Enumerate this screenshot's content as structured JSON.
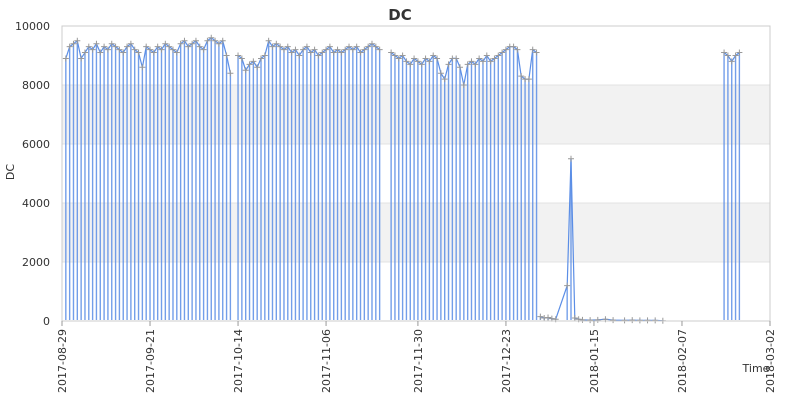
{
  "chart_data": {
    "type": "line",
    "title": "DC",
    "xlabel": "Time",
    "ylabel": "DC",
    "ylim": [
      0,
      10000
    ],
    "xlim": [
      "2017-08-29",
      "2018-03-02"
    ],
    "y_ticks": [
      0,
      2000,
      4000,
      6000,
      8000,
      10000
    ],
    "x_ticks": [
      "2017-08-29",
      "2017-09-21",
      "2017-10-14",
      "2017-11-06",
      "2017-11-30",
      "2017-12-23",
      "2018-01-15",
      "2018-02-07",
      "2018-03-02"
    ],
    "grid": true,
    "alternating_bands": true,
    "legend": "none",
    "series": [
      {
        "color": "#5b8ee6",
        "error_bar_color": "#999999",
        "marker": "plus",
        "segments": [
          {
            "x": [
              "2017-08-30",
              "2017-08-31",
              "2017-09-01",
              "2017-09-02",
              "2017-09-03",
              "2017-09-04",
              "2017-09-05",
              "2017-09-06",
              "2017-09-07",
              "2017-09-08",
              "2017-09-09",
              "2017-09-10",
              "2017-09-11",
              "2017-09-12",
              "2017-09-13",
              "2017-09-14",
              "2017-09-15",
              "2017-09-16",
              "2017-09-17",
              "2017-09-18",
              "2017-09-19",
              "2017-09-20",
              "2017-09-21",
              "2017-09-22",
              "2017-09-23",
              "2017-09-24",
              "2017-09-25",
              "2017-09-26",
              "2017-09-27",
              "2017-09-28",
              "2017-09-29",
              "2017-09-30",
              "2017-10-01",
              "2017-10-02",
              "2017-10-03",
              "2017-10-04",
              "2017-10-05",
              "2017-10-06",
              "2017-10-07",
              "2017-10-08",
              "2017-10-09",
              "2017-10-10",
              "2017-10-11",
              "2017-10-12"
            ],
            "y": [
              8900,
              9300,
              9400,
              9500,
              8900,
              9100,
              9300,
              9200,
              9400,
              9100,
              9300,
              9200,
              9400,
              9300,
              9200,
              9100,
              9300,
              9400,
              9200,
              9100,
              8600,
              9300,
              9200,
              9100,
              9300,
              9200,
              9400,
              9300,
              9200,
              9100,
              9400,
              9500,
              9300,
              9400,
              9500,
              9300,
              9200,
              9500,
              9600,
              9500,
              9400,
              9500,
              9000,
              8400
            ]
          },
          {
            "x": [
              "2017-10-14",
              "2017-10-15",
              "2017-10-16",
              "2017-10-17",
              "2017-10-18",
              "2017-10-19",
              "2017-10-20",
              "2017-10-21",
              "2017-10-22",
              "2017-10-23",
              "2017-10-24",
              "2017-10-25",
              "2017-10-26",
              "2017-10-27",
              "2017-10-28",
              "2017-10-29",
              "2017-10-30",
              "2017-10-31",
              "2017-11-01",
              "2017-11-02",
              "2017-11-03",
              "2017-11-04",
              "2017-11-05",
              "2017-11-06",
              "2017-11-07",
              "2017-11-08",
              "2017-11-09",
              "2017-11-10",
              "2017-11-11",
              "2017-11-12",
              "2017-11-13",
              "2017-11-14",
              "2017-11-15",
              "2017-11-16",
              "2017-11-17",
              "2017-11-18",
              "2017-11-19",
              "2017-11-20"
            ],
            "y": [
              9000,
              8900,
              8500,
              8700,
              8800,
              8600,
              8900,
              9000,
              9500,
              9300,
              9400,
              9300,
              9200,
              9300,
              9100,
              9200,
              9000,
              9200,
              9300,
              9100,
              9200,
              9000,
              9100,
              9200,
              9300,
              9100,
              9200,
              9100,
              9200,
              9300,
              9200,
              9300,
              9100,
              9200,
              9300,
              9400,
              9300,
              9200
            ]
          },
          {
            "x": [
              "2017-11-23",
              "2017-11-24",
              "2017-11-25",
              "2017-11-26",
              "2017-11-27",
              "2017-11-28",
              "2017-11-29",
              "2017-11-30",
              "2017-12-01",
              "2017-12-02",
              "2017-12-03",
              "2017-12-04",
              "2017-12-05",
              "2017-12-06",
              "2017-12-07",
              "2017-12-08",
              "2017-12-09",
              "2017-12-10",
              "2017-12-11",
              "2017-12-12",
              "2017-12-13",
              "2017-12-14",
              "2017-12-15",
              "2017-12-16",
              "2017-12-17",
              "2017-12-18",
              "2017-12-19",
              "2017-12-20",
              "2017-12-21",
              "2017-12-22",
              "2017-12-23",
              "2017-12-24",
              "2017-12-25",
              "2017-12-26",
              "2017-12-27",
              "2017-12-28",
              "2017-12-29",
              "2017-12-30",
              "2017-12-31"
            ],
            "y": [
              9100,
              9000,
              8900,
              9000,
              8800,
              8700,
              8900,
              8800,
              8700,
              8900,
              8800,
              9000,
              8900,
              8400,
              8200,
              8700,
              8900,
              8900,
              8600,
              8000,
              8700,
              8800,
              8700,
              8900,
              8800,
              9000,
              8800,
              8900,
              9000,
              9100,
              9200,
              9300,
              9300,
              9200,
              8300,
              8200,
              8200,
              9200,
              9100
            ]
          },
          {
            "x": [
              "2018-01-01",
              "2018-01-02",
              "2018-01-03",
              "2018-01-04",
              "2018-01-05",
              "2018-01-08",
              "2018-01-09",
              "2018-01-10",
              "2018-01-11",
              "2018-01-12",
              "2018-01-14",
              "2018-01-16",
              "2018-01-18",
              "2018-01-20",
              "2018-01-23",
              "2018-01-25",
              "2018-01-27",
              "2018-01-29",
              "2018-01-31",
              "2018-02-02"
            ],
            "y": [
              150,
              100,
              120,
              80,
              60,
              1200,
              5500,
              100,
              60,
              40,
              30,
              40,
              60,
              30,
              20,
              30,
              20,
              20,
              20,
              10
            ]
          },
          {
            "x": [
              "2018-02-18",
              "2018-02-19",
              "2018-02-20",
              "2018-02-21",
              "2018-02-22"
            ],
            "y": [
              9100,
              9000,
              8800,
              9000,
              9100
            ]
          }
        ]
      }
    ]
  }
}
